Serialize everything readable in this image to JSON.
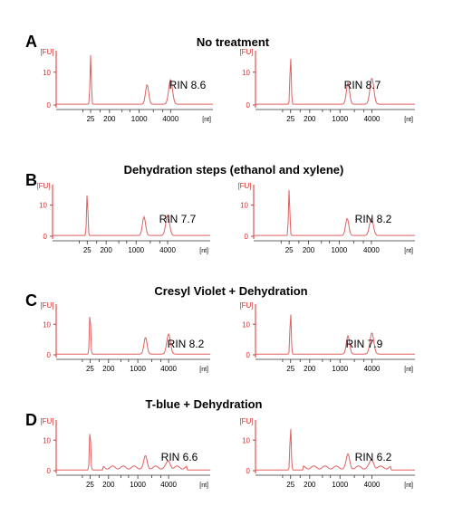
{
  "colors": {
    "trace": "#e06060",
    "axis_y": "#d93030",
    "axis_x": "#333333"
  },
  "panels": [
    {
      "letter": "A",
      "title": "No treatment"
    },
    {
      "letter": "B",
      "title": "Dehydration steps (ethanol and xylene)"
    },
    {
      "letter": "C",
      "title": "Cresyl Violet + Dehydration"
    },
    {
      "letter": "D",
      "title": "T-blue + Dehydration"
    }
  ],
  "chart_data": [
    {
      "type": "line",
      "panel": "A",
      "rin": "RIN 8.6",
      "ylabel": "[FU]",
      "xunit": "[nt]",
      "yticks": [
        "0",
        "10"
      ],
      "xticks": [
        "25",
        "200",
        "1000",
        "4000"
      ],
      "ylim": [
        0,
        16
      ],
      "peaks": [
        {
          "x": "25",
          "height": 15.0
        },
        {
          "x": "18S",
          "height": 6.0
        },
        {
          "x": "28S",
          "height": 7.5
        }
      ]
    },
    {
      "type": "line",
      "panel": "A",
      "rin": "RIN 8.7",
      "ylabel": "[FU]",
      "xunit": "[nt]",
      "yticks": [
        "0",
        "10"
      ],
      "xticks": [
        "25",
        "200",
        "1000",
        "4000"
      ],
      "ylim": [
        0,
        16
      ],
      "peaks": [
        {
          "x": "25",
          "height": 15.0
        },
        {
          "x": "18S",
          "height": 6.5
        },
        {
          "x": "28S",
          "height": 8.0
        }
      ]
    },
    {
      "type": "line",
      "panel": "B",
      "rin": "RIN 7.7",
      "ylabel": "[FU]",
      "xunit": "[nt]",
      "yticks": [
        "0",
        "10"
      ],
      "xticks": [
        "25",
        "200",
        "1000",
        "4000"
      ],
      "ylim": [
        0,
        16
      ],
      "peaks": [
        {
          "x": "25",
          "height": 14.0
        },
        {
          "x": "18S",
          "height": 6.0
        },
        {
          "x": "28S",
          "height": 6.5
        }
      ]
    },
    {
      "type": "line",
      "panel": "B",
      "rin": "RIN 8.2",
      "ylabel": "[FU]",
      "xunit": "[nt]",
      "yticks": [
        "0",
        "10"
      ],
      "xticks": [
        "25",
        "200",
        "1000",
        "4000"
      ],
      "ylim": [
        0,
        16
      ],
      "peaks": [
        {
          "x": "25",
          "height": 15.0
        },
        {
          "x": "18S",
          "height": 5.5
        },
        {
          "x": "28S",
          "height": 5.5
        }
      ]
    },
    {
      "type": "line",
      "panel": "C",
      "rin": "RIN 8.2",
      "ylabel": "[FU]",
      "xunit": "[nt]",
      "yticks": [
        "0",
        "10"
      ],
      "xticks": [
        "25",
        "200",
        "1000",
        "4000"
      ],
      "ylim": [
        0,
        16
      ],
      "peaks": [
        {
          "x": "25",
          "height": 14.5
        },
        {
          "x": "18S",
          "height": 5.5
        },
        {
          "x": "28S",
          "height": 6.5
        }
      ]
    },
    {
      "type": "line",
      "panel": "C",
      "rin": "RIN 7.9",
      "ylabel": "[FU]",
      "xunit": "[nt]",
      "yticks": [
        "0",
        "10"
      ],
      "xticks": [
        "25",
        "200",
        "1000",
        "4000"
      ],
      "ylim": [
        0,
        16
      ],
      "peaks": [
        {
          "x": "25",
          "height": 14.0
        },
        {
          "x": "18S",
          "height": 6.0
        },
        {
          "x": "28S",
          "height": 7.0
        }
      ]
    },
    {
      "type": "line",
      "panel": "D",
      "rin": "RIN 6.6",
      "ylabel": "[FU]",
      "xunit": "[nt]",
      "yticks": [
        "0",
        "10"
      ],
      "xticks": [
        "25",
        "200",
        "1000",
        "4000"
      ],
      "ylim": [
        0,
        16
      ],
      "peaks": [
        {
          "x": "25",
          "height": 14.0
        },
        {
          "x": "18S",
          "height": 3.5
        },
        {
          "x": "28S",
          "height": 2.0
        }
      ]
    },
    {
      "type": "line",
      "panel": "D",
      "rin": "RIN 6.2",
      "ylabel": "[FU]",
      "xunit": "[nt]",
      "yticks": [
        "0",
        "10"
      ],
      "xticks": [
        "25",
        "200",
        "1000",
        "4000"
      ],
      "ylim": [
        0,
        16
      ],
      "peaks": [
        {
          "x": "25",
          "height": 14.5
        },
        {
          "x": "18S",
          "height": 4.0
        },
        {
          "x": "28S",
          "height": 2.5
        }
      ]
    }
  ]
}
